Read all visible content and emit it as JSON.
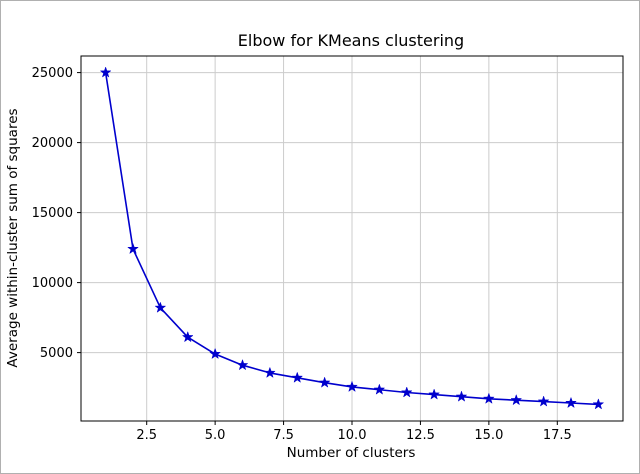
{
  "figure": {
    "background_color": "#ffffff",
    "border_color": "#b0b0b0"
  },
  "chart_data": {
    "type": "line",
    "title": "Elbow for KMeans clustering",
    "xlabel": "Number of clusters",
    "ylabel": "Average within-cluster sum of squares",
    "x": [
      1,
      2,
      3,
      4,
      5,
      6,
      7,
      8,
      9,
      10,
      11,
      12,
      13,
      14,
      15,
      16,
      17,
      18,
      19
    ],
    "y": [
      25000,
      12400,
      8200,
      6100,
      4900,
      4100,
      3550,
      3200,
      2850,
      2550,
      2350,
      2150,
      2000,
      1850,
      1700,
      1600,
      1500,
      1400,
      1300
    ],
    "xlim": [
      0.1,
      19.9
    ],
    "ylim": [
      115,
      26185
    ],
    "xticks": [
      2.5,
      5.0,
      7.5,
      10.0,
      12.5,
      15.0,
      17.5
    ],
    "xtick_labels": [
      "2.5",
      "5.0",
      "7.5",
      "10.0",
      "12.5",
      "15.0",
      "17.5"
    ],
    "yticks": [
      5000,
      10000,
      15000,
      20000,
      25000
    ],
    "ytick_labels": [
      "5000",
      "10000",
      "15000",
      "20000",
      "25000"
    ],
    "grid": true,
    "grid_color": "#cccccc",
    "line_color": "#0000cd",
    "marker": "star",
    "axes_edge_color": "#000000",
    "legend": "none"
  }
}
